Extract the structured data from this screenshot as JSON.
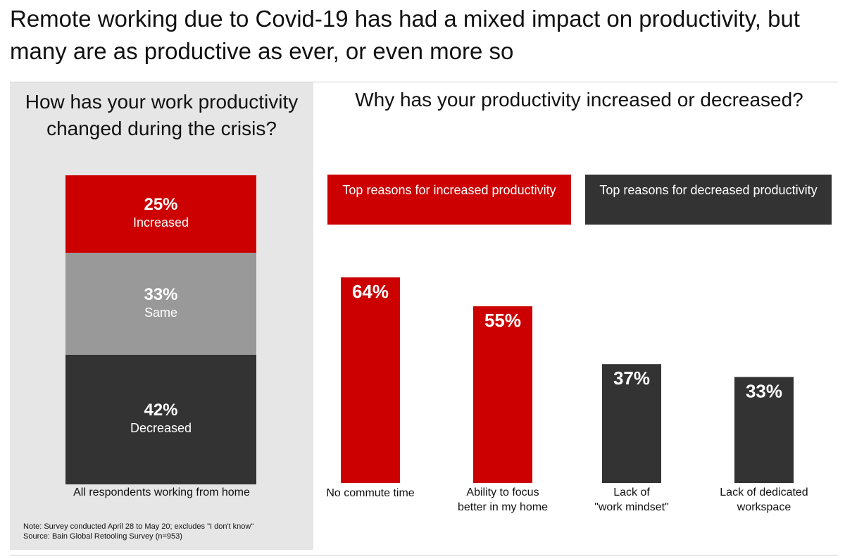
{
  "headline": "Remote working due to Covid-19 has had a mixed impact on productivity, but many are as productive as ever, or even more so",
  "left_panel": {
    "title": "How has your work productivity changed during the crisis?",
    "caption": "All respondents working from home",
    "note_line1": "Note: Survey conducted April 28 to May 20; excludes \"I don't know\"",
    "note_line2": "Source: Bain Global Retooling Survey (n=953)"
  },
  "right_panel": {
    "title": "Why has your productivity increased or decreased?",
    "header_increase": "Top reasons for increased productivity",
    "header_decrease": "Top reasons for decreased productivity"
  },
  "colors": {
    "increase": "#cc0000",
    "same": "#999999",
    "decrease": "#333333"
  },
  "chart_data": [
    {
      "type": "bar",
      "stacked": true,
      "title": "How has your work productivity changed during the crisis?",
      "categories": [
        "All respondents working from home"
      ],
      "series": [
        {
          "name": "Increased",
          "values": [
            25
          ],
          "label": "25%",
          "color": "#cc0000"
        },
        {
          "name": "Same",
          "values": [
            33
          ],
          "label": "33%",
          "color": "#999999"
        },
        {
          "name": "Decreased",
          "values": [
            42
          ],
          "label": "42%",
          "color": "#333333"
        }
      ],
      "ylim": [
        0,
        100
      ]
    },
    {
      "type": "bar",
      "title": "Why has your productivity increased or decreased?",
      "categories": [
        "No commute time",
        "Ability to focus better in my home",
        "Lack of \"work mindset\"",
        "Lack of dedicated workspace"
      ],
      "category_lines": [
        [
          "No commute time"
        ],
        [
          "Ability to focus",
          "better in my home"
        ],
        [
          "Lack of",
          "\"work mindset\""
        ],
        [
          "Lack of dedicated",
          "workspace"
        ]
      ],
      "values": [
        64,
        55,
        37,
        33
      ],
      "labels": [
        "64%",
        "55%",
        "37%",
        "33%"
      ],
      "groups": [
        "increased",
        "increased",
        "decreased",
        "decreased"
      ],
      "ylim": [
        0,
        64
      ]
    }
  ]
}
